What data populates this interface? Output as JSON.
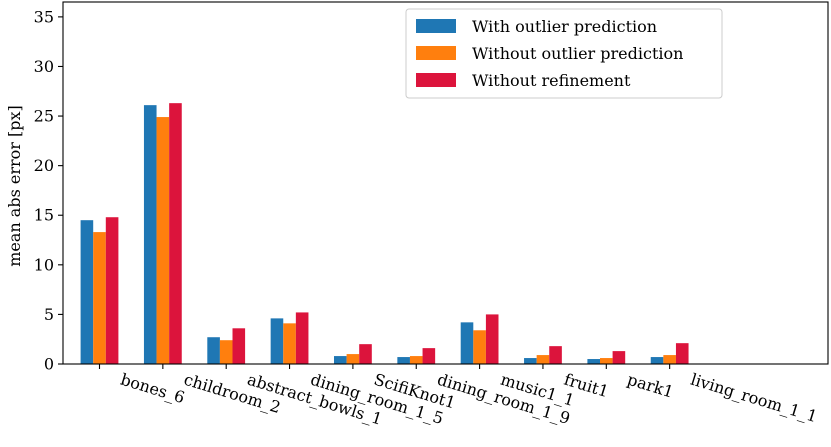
{
  "chart_data": {
    "type": "bar",
    "title": "",
    "xlabel": "",
    "ylabel": "mean abs error [px]",
    "ylim": [
      0,
      36.5
    ],
    "yticks": [
      0,
      5,
      10,
      15,
      20,
      25,
      30,
      35
    ],
    "grid": false,
    "legend_position": "top-right",
    "categories": [
      "bones_6",
      "childroom_2",
      "abstract_bowls_1",
      "dining_room_1_5",
      "ScifiKnot1",
      "dining_room_1_9",
      "music1_1",
      "fruit1",
      "park1",
      "living_room_1_1"
    ],
    "series": [
      {
        "name": "With outlier prediction",
        "color": "#1f77b4",
        "values": [
          14.5,
          26.1,
          2.7,
          4.6,
          0.8,
          0.7,
          4.2,
          0.6,
          0.5,
          0.7
        ]
      },
      {
        "name": "Without outlier prediction",
        "color": "#ff7f0e",
        "values": [
          13.3,
          24.9,
          2.4,
          4.1,
          1.0,
          0.8,
          3.4,
          0.9,
          0.6,
          0.9
        ]
      },
      {
        "name": "Without refinement",
        "color": "#dc143c",
        "values": [
          14.8,
          26.3,
          3.6,
          5.2,
          2.0,
          1.6,
          5.0,
          1.8,
          1.3,
          2.1
        ]
      }
    ]
  }
}
